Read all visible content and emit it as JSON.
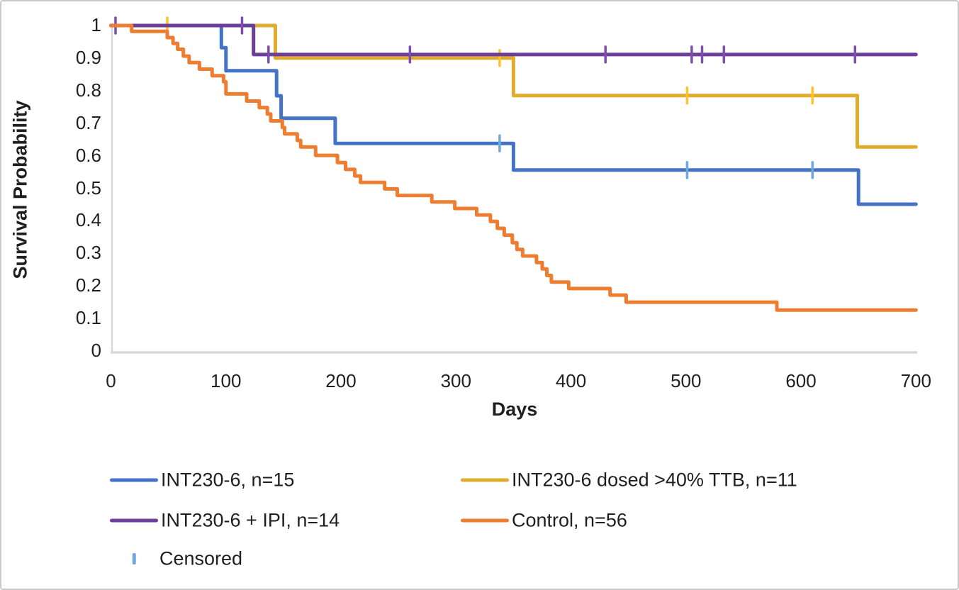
{
  "chart_data": {
    "type": "line",
    "subtype": "kaplan-meier-step-survival",
    "title": "",
    "xlabel": "Days",
    "ylabel": "Survival Probability",
    "xlim": [
      0,
      700
    ],
    "ylim": [
      0,
      1
    ],
    "x_tick_labels": [
      "0",
      "100",
      "200",
      "300",
      "400",
      "500",
      "600",
      "700"
    ],
    "y_tick_labels": [
      "1",
      "0.9",
      "0.8",
      "0.7",
      "0.6",
      "0.5",
      "0.4",
      "0.3",
      "0.2",
      "0.1",
      "0"
    ],
    "grid": "off",
    "legend_position": "bottom-two-columns",
    "end_day": 700,
    "censored_legend_label": "Censored",
    "censored_legend_color": "#6FA8DC",
    "series": [
      {
        "name": "INT230-6",
        "legend_label": "INT230-6, n=15",
        "n": 15,
        "color": "#4472C4",
        "censor_color": "#6FA8DC",
        "steps": [
          [
            0,
            1.0
          ],
          [
            96,
            0.932
          ],
          [
            100,
            0.861
          ],
          [
            144,
            0.784
          ],
          [
            148,
            0.715
          ],
          [
            195,
            0.638
          ],
          [
            350,
            0.556
          ],
          [
            650,
            0.451
          ]
        ],
        "censored": [
          [
            338,
            0.638
          ],
          [
            501,
            0.556
          ],
          [
            610,
            0.556
          ]
        ]
      },
      {
        "name": "INT230-6 dosed >40% TTB",
        "legend_label": "INT230-6 dosed >40% TTB, n=11",
        "n": 11,
        "color": "#DFAC2E",
        "censor_color": "#FFC32E",
        "steps": [
          [
            0,
            1.0
          ],
          [
            143,
            0.9
          ],
          [
            350,
            0.785
          ],
          [
            649,
            0.627
          ]
        ],
        "censored": [
          [
            49,
            1.0
          ],
          [
            338,
            0.9
          ],
          [
            501,
            0.785
          ],
          [
            610,
            0.785
          ]
        ]
      },
      {
        "name": "INT230-6 + IPI",
        "legend_label": "INT230-6 + IPI, n=14",
        "n": 14,
        "color": "#6C3E99",
        "censor_color": "#7C4FAE",
        "steps": [
          [
            0,
            1.0
          ],
          [
            124,
            0.911
          ]
        ],
        "censored": [
          [
            4,
            1.0
          ],
          [
            114,
            1.0
          ],
          [
            137,
            0.911
          ],
          [
            260,
            0.911
          ],
          [
            430,
            0.911
          ],
          [
            505,
            0.911
          ],
          [
            514,
            0.911
          ],
          [
            533,
            0.911
          ],
          [
            647,
            0.911
          ]
        ]
      },
      {
        "name": "Control",
        "legend_label": "Control, n=56",
        "n": 56,
        "color": "#ED7D31",
        "censor_color": "#ED7D31",
        "steps": [
          [
            0,
            1.0
          ],
          [
            18,
            0.982
          ],
          [
            49,
            0.963
          ],
          [
            54,
            0.945
          ],
          [
            58,
            0.927
          ],
          [
            63,
            0.906
          ],
          [
            68,
            0.886
          ],
          [
            77,
            0.866
          ],
          [
            88,
            0.846
          ],
          [
            98,
            0.827
          ],
          [
            100,
            0.79
          ],
          [
            118,
            0.768
          ],
          [
            129,
            0.748
          ],
          [
            136,
            0.728
          ],
          [
            139,
            0.707
          ],
          [
            149,
            0.687
          ],
          [
            151,
            0.667
          ],
          [
            162,
            0.647
          ],
          [
            165,
            0.627
          ],
          [
            178,
            0.601
          ],
          [
            197,
            0.579
          ],
          [
            204,
            0.558
          ],
          [
            212,
            0.538
          ],
          [
            217,
            0.518
          ],
          [
            238,
            0.498
          ],
          [
            249,
            0.478
          ],
          [
            279,
            0.458
          ],
          [
            299,
            0.438
          ],
          [
            318,
            0.418
          ],
          [
            330,
            0.398
          ],
          [
            336,
            0.377
          ],
          [
            342,
            0.356
          ],
          [
            349,
            0.333
          ],
          [
            353,
            0.312
          ],
          [
            358,
            0.292
          ],
          [
            370,
            0.272
          ],
          [
            375,
            0.252
          ],
          [
            379,
            0.232
          ],
          [
            383,
            0.212
          ],
          [
            398,
            0.192
          ],
          [
            434,
            0.172
          ],
          [
            448,
            0.15
          ],
          [
            579,
            0.126
          ]
        ],
        "censored": []
      }
    ],
    "axis_color": "#D9D9D9",
    "text_color": "#1f1f1f"
  }
}
